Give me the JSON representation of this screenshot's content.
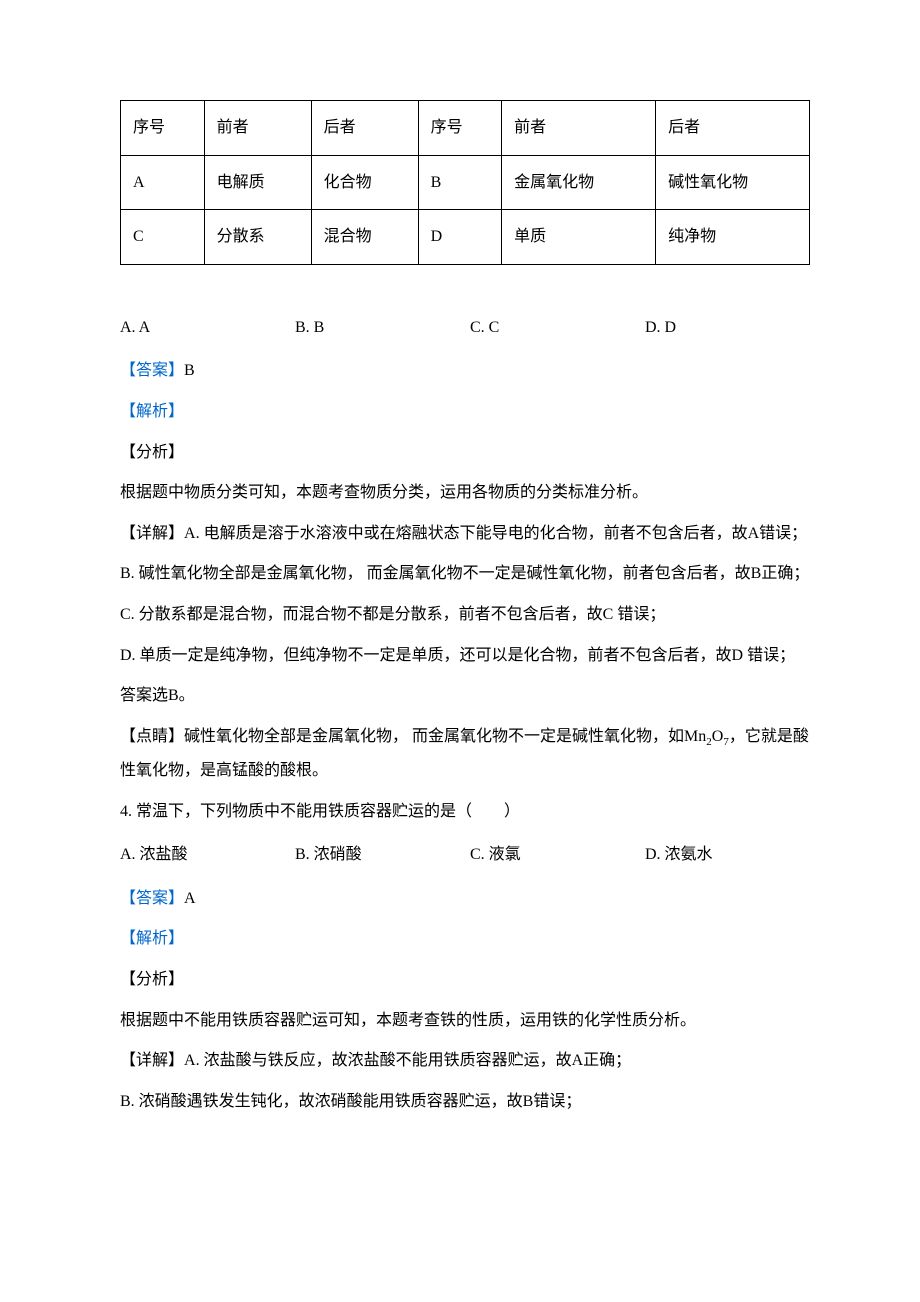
{
  "table": {
    "headers": [
      "序号",
      "前者",
      "后者",
      "序号",
      "前者",
      "后者"
    ],
    "rows": [
      [
        "A",
        "电解质",
        "化合物",
        "B",
        "金属氧化物",
        "碱性氧化物"
      ],
      [
        "C",
        "分散系",
        "混合物",
        "D",
        "单质",
        "纯净物"
      ]
    ]
  },
  "q3": {
    "options": {
      "a": "A. A",
      "b": "B. B",
      "c": "C. C",
      "d": "D. D"
    },
    "answer_label": "【答案】",
    "answer": "B",
    "analysis_label": "【解析】",
    "fenxi_label": "【分析】",
    "fenxi_text": "根据题中物质分类可知，本题考查物质分类，运用各物质的分类标准分析。",
    "detail_label": "【详解】",
    "detail_a": "A. 电解质是溶于水溶液中或在熔融状态下能导电的化合物，前者不包含后者，故A错误；",
    "detail_b": "B. 碱性氧化物全部是金属氧化物， 而金属氧化物不一定是碱性氧化物，前者包含后者，故B正确；",
    "detail_c": "C. 分散系都是混合物，而混合物不都是分散系，前者不包含后者，故C 错误；",
    "detail_d": "D. 单质一定是纯净物，但纯净物不一定是单质，还可以是化合物，前者不包含后者，故D 错误；",
    "conclusion": "答案选B。",
    "dianjing_label": "【点睛】",
    "dianjing_text_1": "碱性氧化物全部是金属氧化物， 而金属氧化物不一定是碱性氧化物，如Mn",
    "dianjing_sub1": "2",
    "dianjing_text_2": "O",
    "dianjing_sub2": "7",
    "dianjing_text_3": "，它就是酸性氧化物，是高锰酸的酸根。"
  },
  "q4": {
    "stem": "4. 常温下，下列物质中不能用铁质容器贮运的是（　　）",
    "options": {
      "a": "A. 浓盐酸",
      "b": "B. 浓硝酸",
      "c": "C. 液氯",
      "d": "D. 浓氨水"
    },
    "answer_label": "【答案】",
    "answer": "A",
    "analysis_label": "【解析】",
    "fenxi_label": "【分析】",
    "fenxi_text": "根据题中不能用铁质容器贮运可知，本题考查铁的性质，运用铁的化学性质分析。",
    "detail_label": "【详解】",
    "detail_a": "A. 浓盐酸与铁反应，故浓盐酸不能用铁质容器贮运，故A正确；",
    "detail_b": "B. 浓硝酸遇铁发生钝化，故浓硝酸能用铁质容器贮运，故B错误；"
  }
}
